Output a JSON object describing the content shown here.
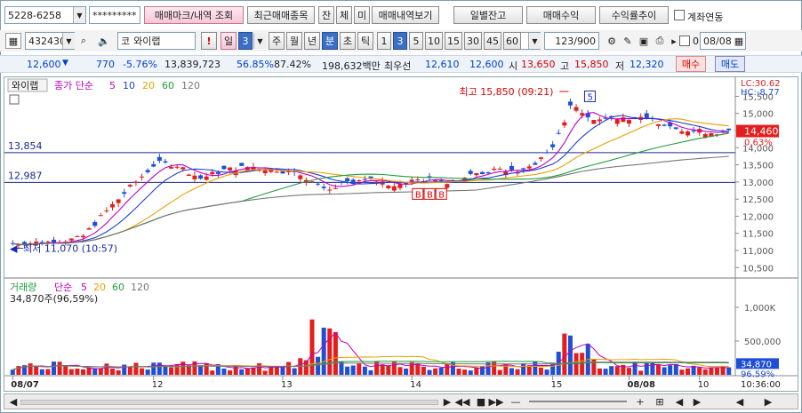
{
  "account": {
    "number": "5228-6258",
    "password": "*********"
  },
  "top_buttons": {
    "trade_mark": "매매마크/내역 조회",
    "recent": "최근매매종목",
    "jan": "잔",
    "che": "체",
    "mi": "미",
    "trade_view": "매매내역보기",
    "daily_balance": "일별잔고",
    "trade_profit": "매매수익",
    "profit_trend": "수익률추이",
    "account_link": "계좌연동"
  },
  "toolbar": {
    "code": "432430",
    "market": "코",
    "stock_name": "와이랩",
    "period_il": "일",
    "period_num": "3",
    "ju": "주",
    "wol": "월",
    "nyeon": "년",
    "bun": "분",
    "cho": "초",
    "tik": "틱",
    "intervals": [
      "1",
      "3",
      "5",
      "10",
      "15",
      "30",
      "45",
      "60"
    ],
    "interval_sel": "3",
    "count": "123",
    "count_total": "/900",
    "zero": "0",
    "date": "08/08"
  },
  "quote": {
    "price": "12,600",
    "change": "770",
    "change_pct": "-5.76%",
    "volume": "13,839,723",
    "ratio1": "56.85%",
    "ratio2": "87.42%",
    "amount": "198,632백만",
    "best_label": "최우선",
    "bid": "12,610",
    "ask": "12,600",
    "open_label": "시",
    "open": "13,650",
    "high_label": "고",
    "high": "15,850",
    "low_label": "저",
    "low": "12,320",
    "buy": "매수",
    "sell": "매도"
  },
  "price_chart": {
    "title": "와이랩",
    "ma_label": "종가 단순",
    "ma_periods": [
      "5",
      "10",
      "20",
      "60",
      "120"
    ],
    "lc": "LC:30.62",
    "hc": "HC:-8.77",
    "high_note": "최고 15,850 (09:21)",
    "low_note": "최저 11,070 (10:57)",
    "line1": "13,854",
    "line2": "12,987",
    "current": "14,460",
    "current_pct": "0.63%",
    "y_ticks": [
      "15,500",
      "15,000",
      "14,500",
      "14,000",
      "13,500",
      "13,000",
      "12,500",
      "12,000",
      "11,500",
      "11,000",
      "10,500"
    ],
    "trade_marks": [
      "5",
      "B",
      "B",
      "B"
    ]
  },
  "volume_chart": {
    "title": "거래량",
    "ma_label": "단순",
    "ma_periods": [
      "5",
      "20",
      "60",
      "120"
    ],
    "value": "34,870주(96,59%)",
    "y_ticks": [
      "1,000K",
      "500,000"
    ],
    "current": "34,870",
    "current_pct": "96.59%"
  },
  "x_axis": [
    "08/07",
    "12",
    "13",
    "14",
    "15",
    "08/08",
    "10"
  ],
  "time": "10:36:00",
  "colors": {
    "up": "#e41e1e",
    "down": "#1e4fd6",
    "ma5": "#c000c0",
    "ma10": "#1f3fd6",
    "ma20": "#e8a000",
    "ma60": "#1f9e3a",
    "ma120": "#777777"
  }
}
